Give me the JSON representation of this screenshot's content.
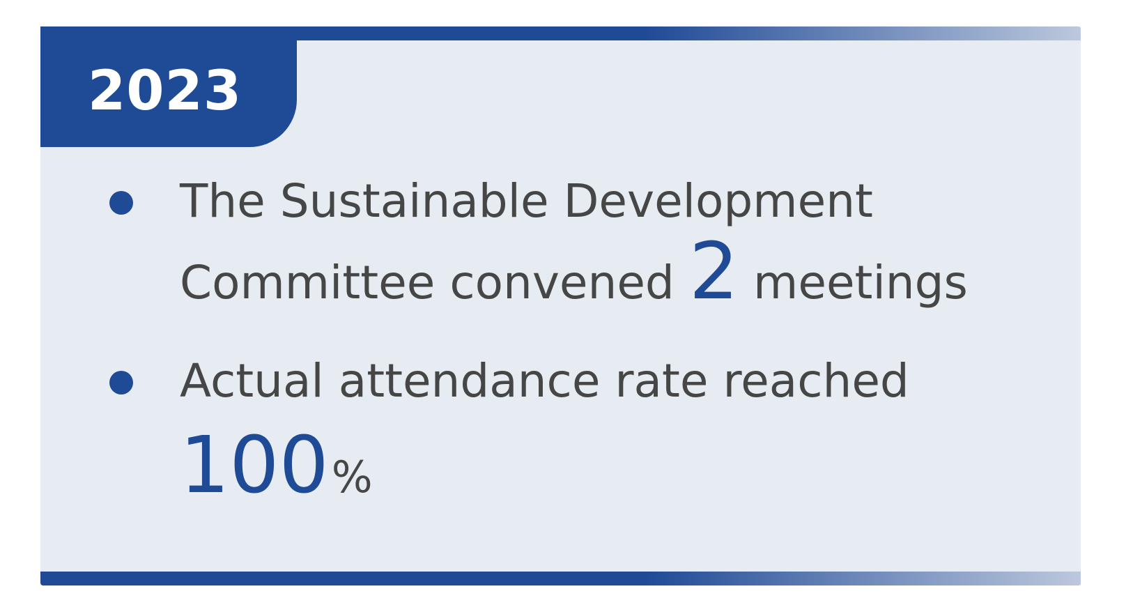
{
  "colors": {
    "accent": "#1f4a96",
    "text": "#464646",
    "card_bg": "#e7ecf3",
    "bar_fade": "#bcc8dd",
    "white": "#ffffff"
  },
  "header": {
    "year": "2023"
  },
  "bullets": [
    {
      "line1": "The Sustainable Development",
      "line2_prefix": "Committee convened ",
      "line2_number": "2",
      "line2_suffix": " meetings"
    },
    {
      "line1": "Actual attendance rate reached",
      "value": "100",
      "unit": "%"
    }
  ]
}
